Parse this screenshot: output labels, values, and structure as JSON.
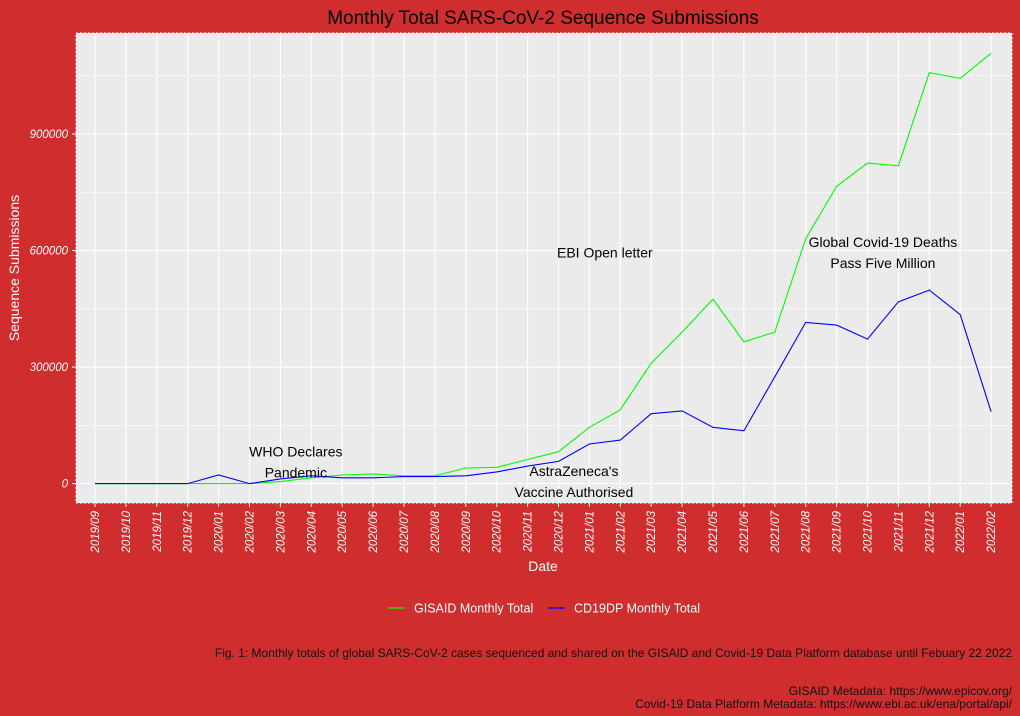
{
  "chart_data": {
    "type": "line",
    "title": "Monthly Total SARS-CoV-2 Sequence Submissions",
    "xlabel": "Date",
    "ylabel": "Sequence Submissions",
    "x": [
      "2019/09",
      "2019/10",
      "2019/11",
      "2019/12",
      "2020/01",
      "2020/02",
      "2020/03",
      "2020/04",
      "2020/05",
      "2020/06",
      "2020/07",
      "2020/08",
      "2020/09",
      "2020/10",
      "2020/11",
      "2020/12",
      "2021/01",
      "2021/02",
      "2021/03",
      "2021/04",
      "2021/05",
      "2021/06",
      "2021/07",
      "2021/08",
      "2021/09",
      "2021/10",
      "2021/11",
      "2021/12",
      "2022/01",
      "2022/02"
    ],
    "ylim": [
      -50000,
      1160000
    ],
    "yticks": [
      0,
      300000,
      600000,
      900000
    ],
    "series": [
      {
        "name": "GISAID Monthly Total",
        "color": "#00FF00",
        "values": [
          0,
          0,
          0,
          0,
          0,
          0,
          5000,
          15000,
          22000,
          25000,
          20000,
          20000,
          40000,
          42000,
          62000,
          82000,
          145000,
          190000,
          310000,
          390000,
          475000,
          365000,
          390000,
          630000,
          765000,
          825000,
          818000,
          1058000,
          1043000,
          1108000
        ]
      },
      {
        "name": "CD19DP Monthly Total",
        "color": "#0000FF",
        "values": [
          0,
          0,
          0,
          0,
          22000,
          0,
          12000,
          20000,
          15000,
          15000,
          18000,
          18000,
          20000,
          30000,
          45000,
          57000,
          102000,
          112000,
          180000,
          187000,
          145000,
          136000,
          275000,
          415000,
          408000,
          372000,
          468000,
          498000,
          435000,
          185000
        ]
      }
    ],
    "annotations": [
      {
        "lines": [
          "WHO Declares",
          "Pandemic"
        ],
        "x": "2020/03",
        "y": 55000
      },
      {
        "lines": [
          "AstraZeneca's",
          "Vaccine Authorised"
        ],
        "x": "2020/12",
        "y": 5000
      },
      {
        "lines": [
          "EBI Open letter"
        ],
        "x": "2021/01",
        "y": 595000
      },
      {
        "lines": [
          "Global Covid-19 Deaths",
          "Pass Five Million"
        ],
        "x": "2021/10",
        "y": 595000
      }
    ],
    "legend_position": "bottom",
    "grid": true
  },
  "captions": {
    "figure": "Fig. 1: Monthly totals of global SARS-CoV-2 cases sequenced and shared on the GISAID and Covid-19 Data Platform database until Febuary 22 2022",
    "source_gisaid": "GISAID Metadata: https://www.epicov.org/",
    "source_cdp": "Covid-19 Data Platform Metadata: https://www.ebi.ac.uk/ena/portal/api/"
  },
  "colors": {
    "background": "#CF2D2E",
    "panel": "#EBEBEB",
    "grid": "#FFFFFF"
  }
}
